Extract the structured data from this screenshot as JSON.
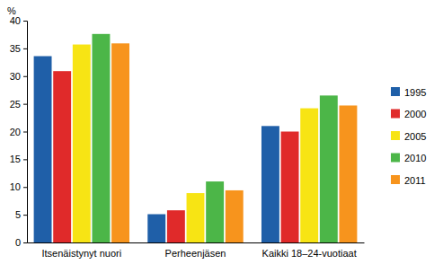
{
  "chart_data": {
    "type": "bar",
    "y_label": "%",
    "categories": [
      "Itsenäistynyt nuori",
      "Perheenjäsen",
      "Kaikki 18–24-vuotiaat"
    ],
    "series": [
      {
        "name": "1995",
        "color": "#1f5fa8",
        "values": [
          33.6,
          5.1,
          21.0
        ]
      },
      {
        "name": "2000",
        "color": "#e02a2a",
        "values": [
          30.9,
          5.8,
          20.0
        ]
      },
      {
        "name": "2005",
        "color": "#f7e414",
        "values": [
          35.7,
          8.9,
          24.2
        ]
      },
      {
        "name": "2010",
        "color": "#4cb648",
        "values": [
          37.6,
          11.0,
          26.5
        ]
      },
      {
        "name": "2011",
        "color": "#f7941d",
        "values": [
          35.9,
          9.4,
          24.7
        ]
      }
    ],
    "ylim": [
      0,
      40
    ],
    "yticks": [
      0,
      5,
      10,
      15,
      20,
      25,
      30,
      35,
      40
    ],
    "grid": false,
    "legend": "right"
  }
}
